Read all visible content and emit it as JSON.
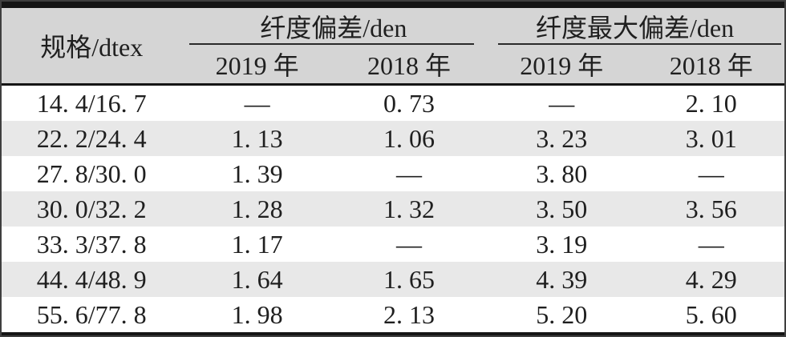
{
  "table": {
    "spec_header": "规格/dtex",
    "group1_header": "纤度偏差/den",
    "group2_header": "纤度最大偏差/den",
    "subheaders": [
      "2019 年",
      "2018 年",
      "2019 年",
      "2018 年"
    ],
    "empty_marker": "—",
    "rows": [
      [
        "14. 4/16. 7",
        "—",
        "0. 73",
        "—",
        "2. 10"
      ],
      [
        "22. 2/24. 4",
        "1. 13",
        "1. 06",
        "3. 23",
        "3. 01"
      ],
      [
        "27. 8/30. 0",
        "1. 39",
        "—",
        "3. 80",
        "—"
      ],
      [
        "30. 0/32. 2",
        "1. 28",
        "1. 32",
        "3. 50",
        "3. 56"
      ],
      [
        "33. 3/37. 8",
        "1. 17",
        "—",
        "3. 19",
        "—"
      ],
      [
        "44. 4/48. 9",
        "1. 64",
        "1. 65",
        "4. 39",
        "4. 29"
      ],
      [
        "55. 6/77. 8",
        "1. 98",
        "2. 13",
        "5. 20",
        "5. 60"
      ]
    ],
    "colors": {
      "header_bg": "#d5d5d5",
      "row_alt_bg": "#e8e8e8",
      "rule": "#151515",
      "text": "#1f1f1f"
    }
  }
}
